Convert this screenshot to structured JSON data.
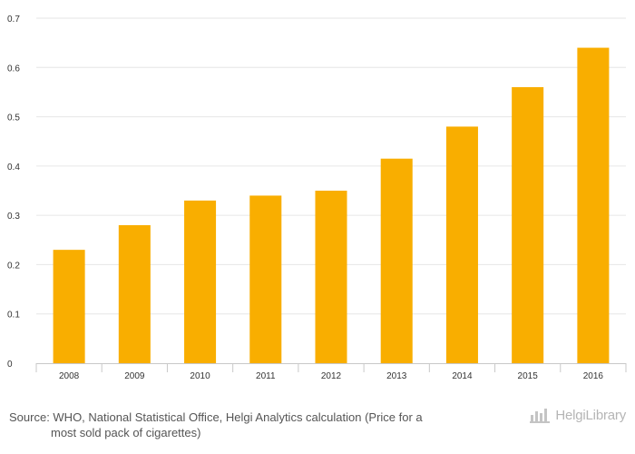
{
  "chart_data": {
    "type": "bar",
    "categories": [
      "2008",
      "2009",
      "2010",
      "2011",
      "2012",
      "2013",
      "2014",
      "2015",
      "2016"
    ],
    "values": [
      0.23,
      0.28,
      0.33,
      0.34,
      0.35,
      0.415,
      0.48,
      0.56,
      0.64
    ],
    "y_ticks": [
      "0",
      "0.1",
      "0.2",
      "0.3",
      "0.4",
      "0.5",
      "0.6",
      "0.7"
    ],
    "ylim": [
      0,
      0.7
    ],
    "bar_color": "#f9ae00",
    "grid_color": "#e6e6e6",
    "grid": true,
    "title": "",
    "xlabel": "",
    "ylabel": ""
  },
  "footer": {
    "source_line1": "Source: WHO, National Statistical Office, Helgi Analytics calculation (Price for a",
    "source_line2": "most sold pack of cigarettes)",
    "logo_text": "HelgiLibrary",
    "logo_icon": "bar-chart-icon"
  }
}
